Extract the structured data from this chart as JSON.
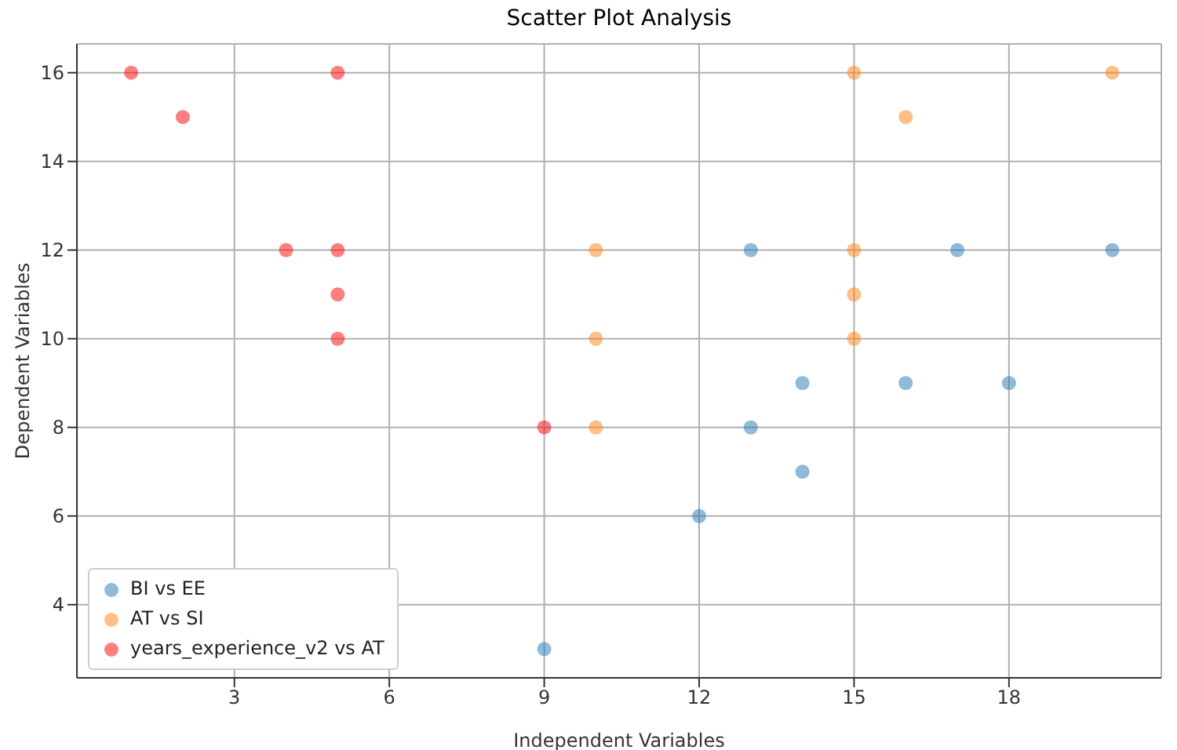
{
  "chart_data": {
    "type": "scatter",
    "title": "Scatter Plot Analysis",
    "xlabel": "Independent Variables",
    "ylabel": "Dependent Variables",
    "xlim": [
      -0.05,
      20.95
    ],
    "ylim": [
      2.35,
      16.65
    ],
    "xticks": [
      3,
      6,
      9,
      12,
      15,
      18
    ],
    "yticks": [
      4,
      6,
      8,
      10,
      12,
      14,
      16
    ],
    "grid": true,
    "legend": "bottom left",
    "marker": "circle",
    "series": [
      {
        "name": "BI vs EE",
        "color": "#1f77b4",
        "x": [
          9,
          12,
          13,
          13,
          14,
          14,
          16,
          17,
          18,
          20
        ],
        "values": [
          3,
          6,
          8,
          12,
          9,
          7,
          9,
          12,
          9,
          12
        ]
      },
      {
        "name": "AT vs SI",
        "color": "#ff7f0e",
        "x": [
          10,
          10,
          10,
          15,
          15,
          15,
          15,
          16,
          20
        ],
        "values": [
          12,
          10,
          8,
          16,
          12,
          11,
          10,
          15,
          16
        ]
      },
      {
        "name": "years_experience_v2 vs AT",
        "color": "#ff0000",
        "x": [
          1,
          2,
          4,
          5,
          5,
          5,
          5,
          9
        ],
        "values": [
          16,
          15,
          12,
          16,
          12,
          11,
          10,
          8
        ]
      }
    ]
  }
}
